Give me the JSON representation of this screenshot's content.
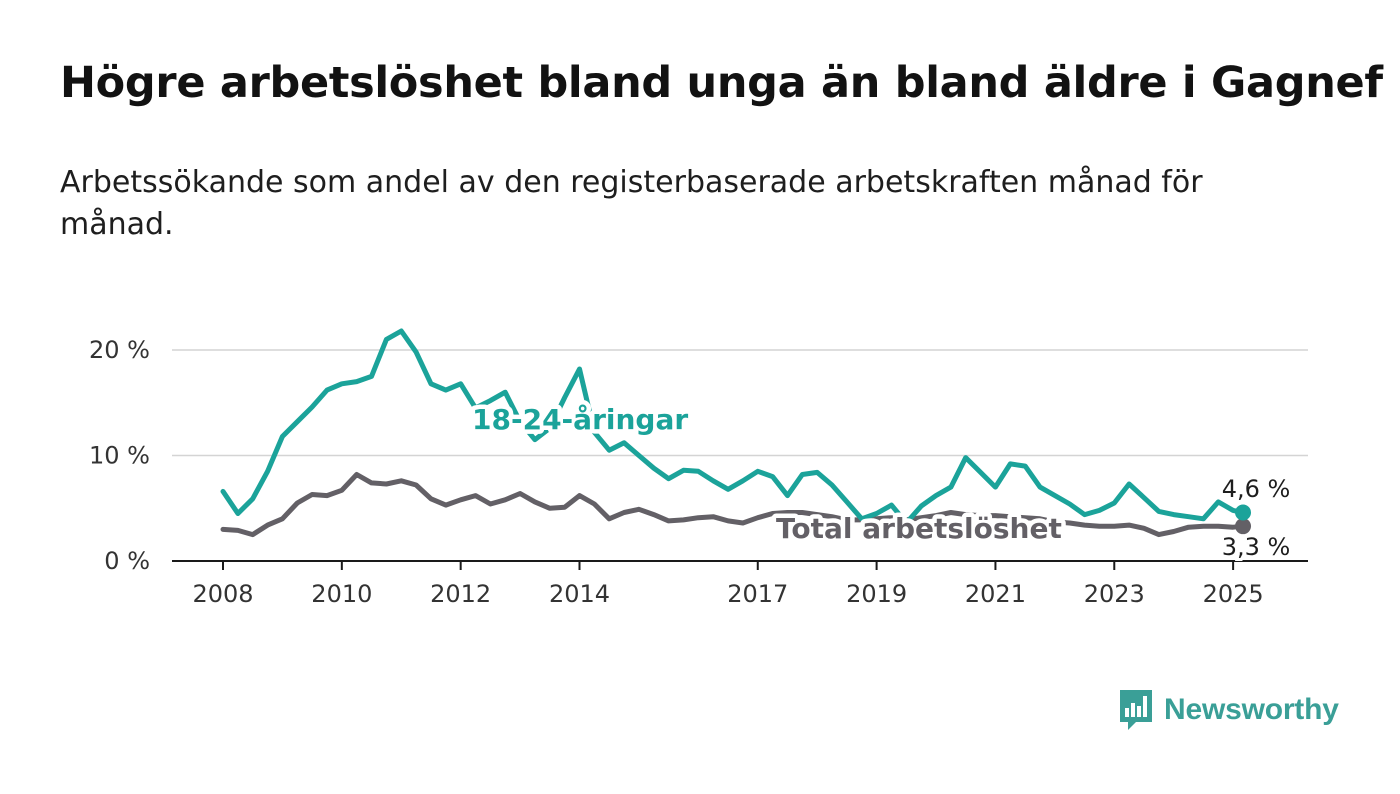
{
  "header": {
    "title": "Högre arbetslöshet bland unga än bland äldre i Gagnef",
    "subtitle": "Arbetssökande som andel av den registerbaserade arbetskraften månad för månad."
  },
  "brand": {
    "name": "Newsworthy",
    "icon": "newsworthy-logo-icon",
    "color": "#3a9f97"
  },
  "chart_data": {
    "type": "line",
    "x_ticks": [
      "2008",
      "2010",
      "2012",
      "2014",
      "2017",
      "2019",
      "2021",
      "2023",
      "2025"
    ],
    "y_ticks": [
      "0 %",
      "10 %",
      "20 %"
    ],
    "ylim": [
      0,
      25
    ],
    "grid": true,
    "series": [
      {
        "name": "18-24-åringar",
        "color": "#1ba39a",
        "end_label": "4,6 %",
        "x": [
          "2008-01",
          "2008-04",
          "2008-07",
          "2008-10",
          "2009-01",
          "2009-04",
          "2009-07",
          "2009-10",
          "2010-01",
          "2010-04",
          "2010-07",
          "2010-10",
          "2011-01",
          "2011-04",
          "2011-07",
          "2011-10",
          "2012-01",
          "2012-04",
          "2012-07",
          "2012-10",
          "2013-01",
          "2013-04",
          "2013-07",
          "2013-10",
          "2014-01",
          "2014-04",
          "2014-07",
          "2014-10",
          "2015-01",
          "2015-04",
          "2015-07",
          "2015-10",
          "2016-01",
          "2016-04",
          "2016-07",
          "2016-10",
          "2017-01",
          "2017-04",
          "2017-07",
          "2017-10",
          "2018-01",
          "2018-04",
          "2018-07",
          "2018-10",
          "2019-01",
          "2019-04",
          "2019-07",
          "2019-10",
          "2020-01",
          "2020-04",
          "2020-07",
          "2020-10",
          "2021-01",
          "2021-04",
          "2021-07",
          "2021-10",
          "2022-01",
          "2022-04",
          "2022-07",
          "2022-10",
          "2023-01",
          "2023-04",
          "2023-07",
          "2023-10",
          "2024-01",
          "2024-04",
          "2024-07",
          "2024-10",
          "2025-01",
          "2025-03"
        ],
        "values": [
          6.6,
          4.5,
          5.9,
          8.5,
          11.8,
          13.2,
          14.6,
          16.2,
          16.8,
          17.0,
          17.5,
          21.0,
          21.8,
          19.8,
          16.8,
          16.2,
          16.8,
          14.5,
          15.2,
          16.0,
          13.2,
          11.5,
          12.6,
          15.5,
          18.2,
          12.2,
          10.5,
          11.2,
          10.0,
          8.8,
          7.8,
          8.6,
          8.5,
          7.6,
          6.8,
          7.6,
          8.5,
          8.0,
          6.2,
          8.2,
          8.4,
          7.2,
          5.6,
          4.0,
          4.5,
          5.3,
          3.6,
          5.2,
          6.2,
          7.0,
          9.8,
          8.4,
          7.0,
          9.2,
          9.0,
          7.0,
          6.2,
          5.4,
          4.4,
          4.8,
          5.5,
          7.3,
          6.0,
          4.7,
          4.4,
          4.2,
          4.0,
          5.6,
          4.8,
          4.6
        ]
      },
      {
        "name": "Total arbetslöshet",
        "color": "#636066",
        "end_label": "3,3 %",
        "x": [
          "2008-01",
          "2008-04",
          "2008-07",
          "2008-10",
          "2009-01",
          "2009-04",
          "2009-07",
          "2009-10",
          "2010-01",
          "2010-04",
          "2010-07",
          "2010-10",
          "2011-01",
          "2011-04",
          "2011-07",
          "2011-10",
          "2012-01",
          "2012-04",
          "2012-07",
          "2012-10",
          "2013-01",
          "2013-04",
          "2013-07",
          "2013-10",
          "2014-01",
          "2014-04",
          "2014-07",
          "2014-10",
          "2015-01",
          "2015-04",
          "2015-07",
          "2015-10",
          "2016-01",
          "2016-04",
          "2016-07",
          "2016-10",
          "2017-01",
          "2017-04",
          "2017-07",
          "2017-10",
          "2018-01",
          "2018-04",
          "2018-07",
          "2018-10",
          "2019-01",
          "2019-04",
          "2019-07",
          "2019-10",
          "2020-01",
          "2020-04",
          "2020-07",
          "2020-10",
          "2021-01",
          "2021-04",
          "2021-07",
          "2021-10",
          "2022-01",
          "2022-04",
          "2022-07",
          "2022-10",
          "2023-01",
          "2023-04",
          "2023-07",
          "2023-10",
          "2024-01",
          "2024-04",
          "2024-07",
          "2024-10",
          "2025-01",
          "2025-03"
        ],
        "values": [
          3.0,
          2.9,
          2.5,
          3.4,
          4.0,
          5.5,
          6.3,
          6.2,
          6.7,
          8.2,
          7.4,
          7.3,
          7.6,
          7.2,
          5.9,
          5.3,
          5.8,
          6.2,
          5.4,
          5.8,
          6.4,
          5.6,
          5.0,
          5.1,
          6.2,
          5.4,
          4.0,
          4.6,
          4.9,
          4.4,
          3.8,
          3.9,
          4.1,
          4.2,
          3.8,
          3.6,
          4.1,
          4.5,
          4.6,
          4.6,
          4.4,
          4.2,
          3.9,
          3.9,
          4.0,
          4.1,
          3.9,
          4.1,
          4.3,
          4.6,
          4.4,
          4.3,
          4.3,
          4.2,
          4.1,
          4.0,
          3.7,
          3.6,
          3.4,
          3.3,
          3.3,
          3.4,
          3.1,
          2.5,
          2.8,
          3.2,
          3.3,
          3.3,
          3.2,
          3.3
        ]
      }
    ]
  }
}
